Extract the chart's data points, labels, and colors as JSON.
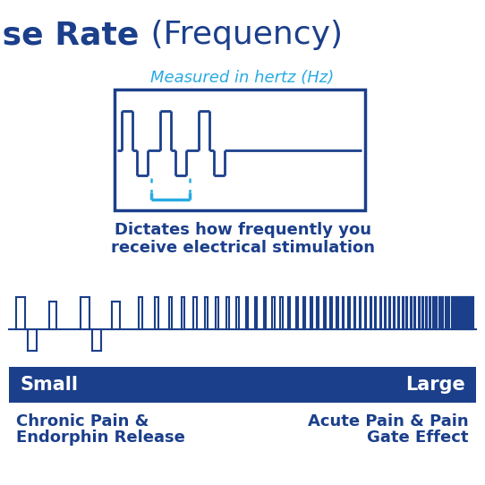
{
  "title_bold": "Pulse Rate",
  "title_normal": " (Frequency)",
  "subtitle": "Measured in hertz (Hz)",
  "desc1": "Dictates how frequently you",
  "desc2": "receive electrical stimulation",
  "label_small": "Small",
  "label_large": "Large",
  "left1": "Chronic Pain &",
  "left2": "Endorphin Release",
  "right1": "Acute Pain & Pain",
  "right2": "Gate Effect",
  "dark_blue": "#1B3F8B",
  "light_blue": "#29ABE2",
  "bg": "#FFFFFF",
  "fig_w": 5.42,
  "fig_h": 5.42,
  "dpi": 100
}
